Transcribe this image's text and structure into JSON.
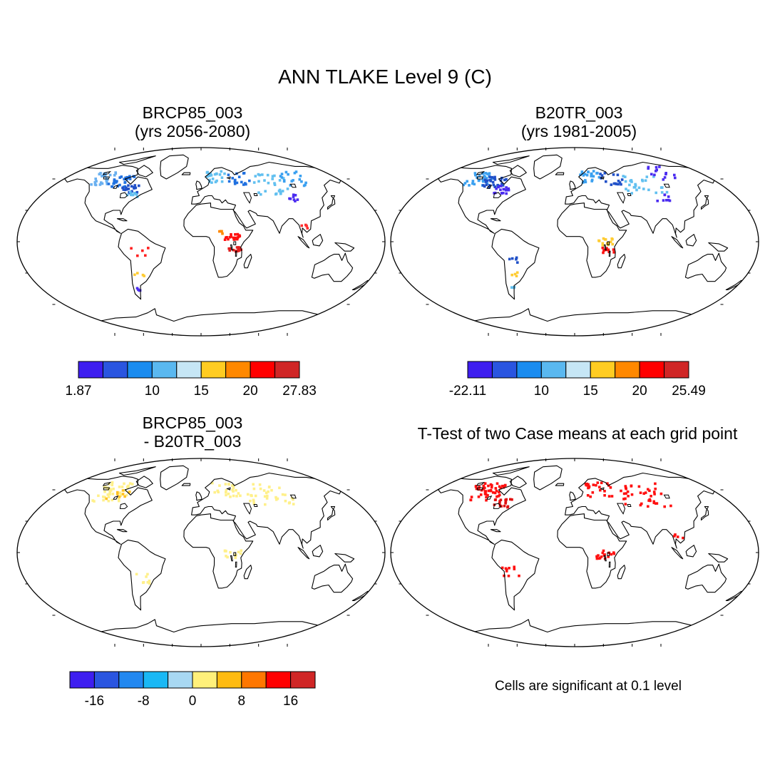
{
  "figure": {
    "title": "ANN TLAKE Level 9 (C)"
  },
  "panels": [
    {
      "id": "case1",
      "title_line1": "BRCP85_003",
      "title_line2": "(yrs 2056-2080)",
      "dots": [
        {
          "lon": -115,
          "lat": 60,
          "color": "#6ab0f0",
          "n": 28,
          "spread": 9
        },
        {
          "lon": -95,
          "lat": 57,
          "color": "#2070e0",
          "n": 28,
          "spread": 8
        },
        {
          "lon": -80,
          "lat": 50,
          "color": "#2050c8",
          "n": 20,
          "spread": 6
        },
        {
          "lon": -75,
          "lat": 45,
          "color": "#62c0f0",
          "n": 10,
          "spread": 4
        },
        {
          "lon": 20,
          "lat": 62,
          "color": "#62c0f0",
          "n": 22,
          "spread": 8
        },
        {
          "lon": 45,
          "lat": 60,
          "color": "#2070e0",
          "n": 16,
          "spread": 8
        },
        {
          "lon": 80,
          "lat": 55,
          "color": "#62c0f0",
          "n": 28,
          "spread": 14
        },
        {
          "lon": 110,
          "lat": 60,
          "color": "#3aa0f0",
          "n": 18,
          "spread": 10
        },
        {
          "lon": 95,
          "lat": 42,
          "color": "#4b2cf0",
          "n": 8,
          "spread": 5
        },
        {
          "lon": 30,
          "lat": 5,
          "color": "#ff1010",
          "n": 20,
          "spread": 5
        },
        {
          "lon": 33,
          "lat": -8,
          "color": "#e02020",
          "n": 14,
          "spread": 4
        },
        {
          "lon": 15,
          "lat": 10,
          "color": "#ff8800",
          "n": 4,
          "spread": 4
        },
        {
          "lon": -60,
          "lat": -10,
          "color": "#ff2020",
          "n": 5,
          "spread": 6
        },
        {
          "lon": -62,
          "lat": -32,
          "color": "#ffcc33",
          "n": 4,
          "spread": 4
        },
        {
          "lon": -70,
          "lat": -45,
          "color": "#4b2cf0",
          "n": 4,
          "spread": 3
        },
        {
          "lon": 105,
          "lat": 15,
          "color": "#ff3030",
          "n": 4,
          "spread": 4
        }
      ]
    },
    {
      "id": "case2",
      "title_line1": "B20TR_003",
      "title_line2": "(yrs 1981-2005)",
      "dots": [
        {
          "lon": -115,
          "lat": 60,
          "color": "#3aa0f0",
          "n": 28,
          "spread": 9
        },
        {
          "lon": -95,
          "lat": 57,
          "color": "#2050c8",
          "n": 30,
          "spread": 8
        },
        {
          "lon": -80,
          "lat": 50,
          "color": "#4b2cf0",
          "n": 18,
          "spread": 6
        },
        {
          "lon": 20,
          "lat": 62,
          "color": "#3aa0f0",
          "n": 22,
          "spread": 8
        },
        {
          "lon": 45,
          "lat": 60,
          "color": "#2050c8",
          "n": 16,
          "spread": 8
        },
        {
          "lon": 80,
          "lat": 55,
          "color": "#62c0f0",
          "n": 28,
          "spread": 14
        },
        {
          "lon": 110,
          "lat": 65,
          "color": "#4b2cf0",
          "n": 14,
          "spread": 10
        },
        {
          "lon": 95,
          "lat": 42,
          "color": "#4b2cf0",
          "n": 8,
          "spread": 5
        },
        {
          "lon": 30,
          "lat": 0,
          "color": "#ffcc33",
          "n": 14,
          "spread": 5
        },
        {
          "lon": 33,
          "lat": -8,
          "color": "#ff1010",
          "n": 10,
          "spread": 4
        },
        {
          "lon": -62,
          "lat": -18,
          "color": "#2050c8",
          "n": 5,
          "spread": 4
        },
        {
          "lon": -62,
          "lat": -32,
          "color": "#ffcc33",
          "n": 4,
          "spread": 4
        },
        {
          "lon": -70,
          "lat": -45,
          "color": "#62c0f0",
          "n": 3,
          "spread": 3
        }
      ]
    },
    {
      "id": "diff",
      "title_line1": "BRCP85_003",
      "title_line2": "- B20TR_003",
      "dots": [
        {
          "lon": -105,
          "lat": 58,
          "color": "#fff08a",
          "n": 40,
          "spread": 13
        },
        {
          "lon": 30,
          "lat": 60,
          "color": "#fff08a",
          "n": 24,
          "spread": 10
        },
        {
          "lon": 80,
          "lat": 55,
          "color": "#fff08a",
          "n": 34,
          "spread": 16
        },
        {
          "lon": 30,
          "lat": -2,
          "color": "#fff08a",
          "n": 12,
          "spread": 6
        },
        {
          "lon": -62,
          "lat": -25,
          "color": "#fff08a",
          "n": 8,
          "spread": 7
        },
        {
          "lon": -95,
          "lat": 55,
          "color": "#ffc020",
          "n": 8,
          "spread": 8
        }
      ]
    },
    {
      "id": "ttest",
      "title_line1": "T-Test of two Case means at each grid point",
      "title_line2": "",
      "dots": [
        {
          "lon": -105,
          "lat": 58,
          "color": "#ff1010",
          "n": 46,
          "spread": 12
        },
        {
          "lon": -80,
          "lat": 47,
          "color": "#e01010",
          "n": 16,
          "spread": 6
        },
        {
          "lon": 30,
          "lat": 60,
          "color": "#ff1010",
          "n": 24,
          "spread": 10
        },
        {
          "lon": 80,
          "lat": 55,
          "color": "#ff1010",
          "n": 38,
          "spread": 16
        },
        {
          "lon": 30,
          "lat": -2,
          "color": "#ff1010",
          "n": 16,
          "spread": 6
        },
        {
          "lon": -62,
          "lat": -20,
          "color": "#ff1010",
          "n": 10,
          "spread": 9
        },
        {
          "lon": 105,
          "lat": 15,
          "color": "#ff1010",
          "n": 4,
          "spread": 4
        }
      ]
    }
  ],
  "colorbars": [
    {
      "id": "cbar1",
      "colors": [
        "#3e1ef0",
        "#2a55e0",
        "#1a8cf0",
        "#5ab8f0",
        "#c6e6f5",
        "#ffcc22",
        "#ff8800",
        "#ff0000",
        "#d02626"
      ],
      "labels": [
        {
          "text": "1.87",
          "at": 0
        },
        {
          "text": "10",
          "at": 3
        },
        {
          "text": "15",
          "at": 5
        },
        {
          "text": "20",
          "at": 7
        },
        {
          "text": "27.83",
          "at": 9
        }
      ]
    },
    {
      "id": "cbar2",
      "colors": [
        "#3e1ef0",
        "#2a55e0",
        "#1a8cf0",
        "#5ab8f0",
        "#c6e6f5",
        "#ffcc22",
        "#ff8800",
        "#ff0000",
        "#d02626"
      ],
      "labels": [
        {
          "text": "-22.11",
          "at": 0
        },
        {
          "text": "10",
          "at": 3
        },
        {
          "text": "15",
          "at": 5
        },
        {
          "text": "20",
          "at": 7
        },
        {
          "text": "25.49",
          "at": 9
        }
      ]
    },
    {
      "id": "cbar3",
      "colors": [
        "#3e1ef0",
        "#2a55e0",
        "#2288f0",
        "#1ab8f5",
        "#a8d8f2",
        "#fff07a",
        "#ffbb11",
        "#ff7700",
        "#ff0000",
        "#d02626"
      ],
      "labels": [
        {
          "text": "-16",
          "at": 1
        },
        {
          "text": "-8",
          "at": 3
        },
        {
          "text": "0",
          "at": 5
        },
        {
          "text": "8",
          "at": 7
        },
        {
          "text": "16",
          "at": 9
        }
      ]
    }
  ],
  "note": "Cells are significant at 0.1 level"
}
